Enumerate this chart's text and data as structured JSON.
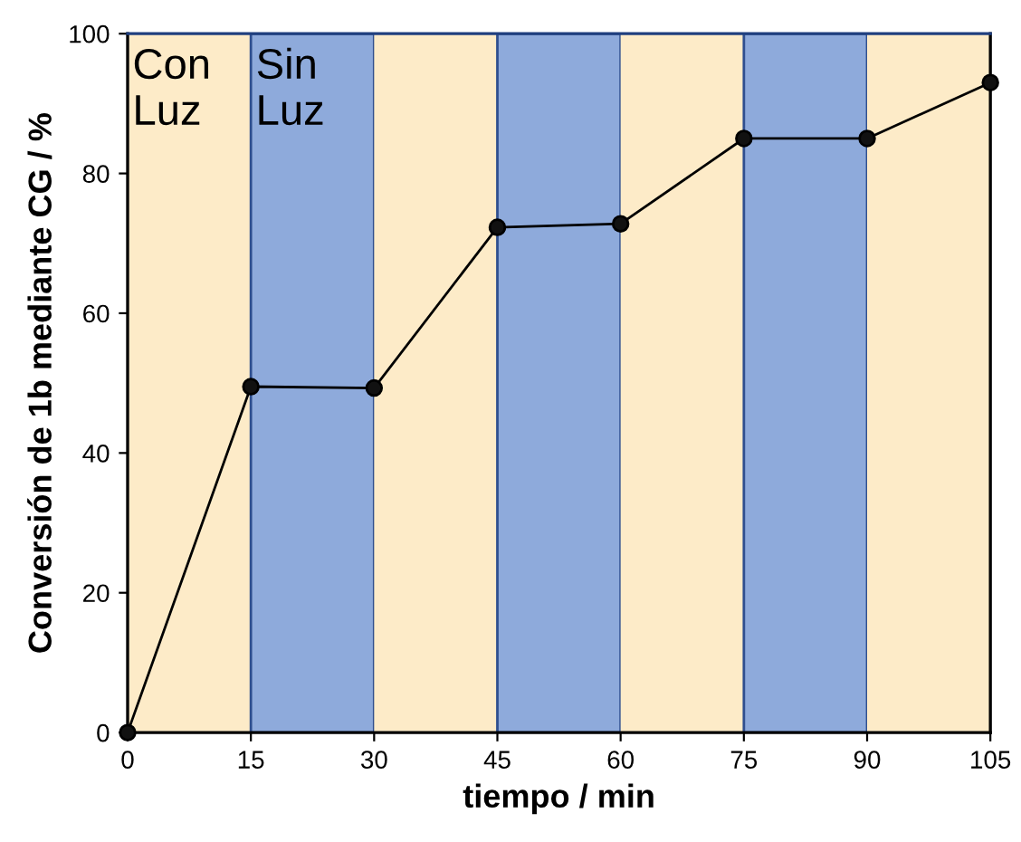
{
  "chart_data": {
    "type": "line",
    "xlabel": "tiempo / min",
    "ylabel": "Conversión de 1b mediante CG / %",
    "x": [
      0,
      15,
      30,
      45,
      60,
      75,
      90,
      105
    ],
    "series": [
      {
        "color": "#000000",
        "values": [
          0,
          49.5,
          49.3,
          72.3,
          72.8,
          85,
          85,
          93
        ]
      }
    ],
    "xlim": [
      0,
      105
    ],
    "ylim": [
      0,
      100
    ],
    "xticks": [
      0,
      15,
      30,
      45,
      60,
      75,
      90,
      105
    ],
    "yticks": [
      0,
      20,
      40,
      60,
      80,
      100
    ],
    "marker": "circle",
    "line_style": "solid",
    "grid": false,
    "legend": false,
    "bands": [
      {
        "axis": "x",
        "from": 0,
        "to": 15,
        "label": "Con\nLuz",
        "color": "#fdebc8"
      },
      {
        "axis": "x",
        "from": 15,
        "to": 30,
        "label": "Sin\nLuz",
        "color": "#8eaadb"
      },
      {
        "axis": "x",
        "from": 30,
        "to": 45,
        "color": "#fdebc8"
      },
      {
        "axis": "x",
        "from": 45,
        "to": 60,
        "color": "#8eaadb"
      },
      {
        "axis": "x",
        "from": 60,
        "to": 75,
        "color": "#fdebc8"
      },
      {
        "axis": "x",
        "from": 75,
        "to": 90,
        "color": "#8eaadb"
      },
      {
        "axis": "x",
        "from": 90,
        "to": 105,
        "color": "#fdebc8"
      }
    ]
  }
}
